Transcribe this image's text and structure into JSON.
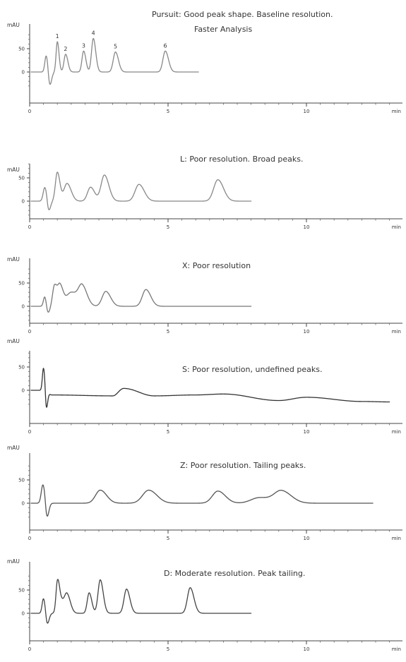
{
  "chart_data": [
    {
      "type": "line",
      "title": "Pursuit: Good peak shape. Baseline resolution.",
      "subtitle": "Faster Analysis",
      "ylabel": "mAU",
      "xlabel": "min",
      "xlim": [
        0,
        13
      ],
      "ylim": [
        -30,
        85
      ],
      "x_ticks": [
        0,
        5,
        10
      ],
      "y_ticks": [
        0,
        50
      ],
      "trace_color": "#888888",
      "peaks": [
        {
          "t": 0.6,
          "h": 36,
          "w": 0.05
        },
        {
          "t": 0.72,
          "h": -32,
          "w": 0.05
        },
        {
          "t": 1.0,
          "h": 65,
          "w": 0.045
        },
        {
          "t": 1.3,
          "h": 38,
          "w": 0.06
        },
        {
          "t": 1.95,
          "h": 45,
          "w": 0.06
        },
        {
          "t": 2.3,
          "h": 72,
          "w": 0.065
        },
        {
          "t": 3.1,
          "h": 43,
          "w": 0.08
        },
        {
          "t": 4.9,
          "h": 45,
          "w": 0.085
        }
      ],
      "peak_labels": [
        {
          "label": "1",
          "t": 1.0,
          "h": 65
        },
        {
          "label": "2",
          "t": 1.3,
          "h": 38
        },
        {
          "label": "3",
          "t": 1.95,
          "h": 45
        },
        {
          "label": "4",
          "t": 2.3,
          "h": 72
        },
        {
          "label": "5",
          "t": 3.1,
          "h": 43
        },
        {
          "label": "6",
          "t": 4.9,
          "h": 45
        }
      ],
      "trace_end": 6.1
    },
    {
      "type": "line",
      "title": "L: Poor resolution. Broad peaks.",
      "ylabel": "mAU",
      "xlabel": "min",
      "xlim": [
        0,
        13
      ],
      "ylim": [
        -30,
        85
      ],
      "x_ticks": [
        0,
        5,
        10
      ],
      "y_ticks": [
        0,
        50
      ],
      "trace_color": "#888888",
      "peaks": [
        {
          "t": 0.55,
          "h": 30,
          "w": 0.06
        },
        {
          "t": 0.68,
          "h": -25,
          "w": 0.05
        },
        {
          "t": 1.0,
          "h": 62,
          "w": 0.07
        },
        {
          "t": 1.35,
          "h": 38,
          "w": 0.11
        },
        {
          "t": 2.2,
          "h": 30,
          "w": 0.11
        },
        {
          "t": 2.7,
          "h": 56,
          "w": 0.12
        },
        {
          "t": 3.95,
          "h": 36,
          "w": 0.14
        },
        {
          "t": 6.8,
          "h": 46,
          "w": 0.15
        }
      ],
      "peak_labels": [],
      "trace_end": 8.0
    },
    {
      "type": "line",
      "title": "X: Poor resolution",
      "ylabel": "mAU",
      "xlabel": "min",
      "xlim": [
        0,
        13
      ],
      "ylim": [
        -30,
        85
      ],
      "x_ticks": [
        0,
        5,
        10
      ],
      "y_ticks": [
        0,
        50
      ],
      "trace_color": "#777777",
      "peaks": [
        {
          "t": 0.55,
          "h": 22,
          "w": 0.05
        },
        {
          "t": 0.65,
          "h": -18,
          "w": 0.05
        },
        {
          "t": 0.9,
          "h": 45,
          "w": 0.07
        },
        {
          "t": 1.1,
          "h": 42,
          "w": 0.08
        },
        {
          "t": 1.5,
          "h": 30,
          "w": 0.18
        },
        {
          "t": 1.9,
          "h": 40,
          "w": 0.13
        },
        {
          "t": 2.75,
          "h": 32,
          "w": 0.13
        },
        {
          "t": 4.2,
          "h": 36,
          "w": 0.13
        }
      ],
      "peak_labels": [],
      "trace_end": 8.0
    },
    {
      "type": "line",
      "title": "S: Poor resolution, undefined peaks.",
      "ylabel": "mAU",
      "xlabel": "min",
      "xlim": [
        0,
        13
      ],
      "ylim": [
        -30,
        85
      ],
      "x_ticks": [
        0,
        5,
        10
      ],
      "y_ticks": [
        0,
        50
      ],
      "trace_color": "#333333",
      "baseline": [
        {
          "t": 0.55,
          "y": 0
        },
        {
          "t": 0.8,
          "y": -10
        },
        {
          "t": 3.0,
          "y": -12
        },
        {
          "t": 3.4,
          "y": 4
        },
        {
          "t": 4.5,
          "y": -12
        },
        {
          "t": 6.0,
          "y": -10
        },
        {
          "t": 7.0,
          "y": -8
        },
        {
          "t": 9.0,
          "y": -22
        },
        {
          "t": 10.0,
          "y": -15
        },
        {
          "t": 12.0,
          "y": -24
        },
        {
          "t": 13.0,
          "y": -25
        }
      ],
      "peaks": [
        {
          "t": 0.5,
          "h": 48,
          "w": 0.04
        },
        {
          "t": 0.6,
          "h": -42,
          "w": 0.035
        }
      ],
      "peak_labels": [],
      "trace_end": 13.0
    },
    {
      "type": "line",
      "title": "Z: Poor resolution. Tailing peaks.",
      "ylabel": "mAU",
      "xlabel": "min",
      "xlim": [
        0,
        13
      ],
      "ylim": [
        -30,
        85
      ],
      "x_ticks": [
        0,
        5,
        10
      ],
      "y_ticks": [
        0,
        50
      ],
      "trace_color": "#555555",
      "peaks": [
        {
          "t": 0.48,
          "h": 40,
          "w": 0.06
        },
        {
          "t": 0.62,
          "h": -35,
          "w": 0.05
        },
        {
          "t": 2.55,
          "h": 28,
          "w": 0.17
        },
        {
          "t": 4.3,
          "h": 28,
          "w": 0.22
        },
        {
          "t": 6.8,
          "h": 26,
          "w": 0.2
        },
        {
          "t": 8.3,
          "h": 12,
          "w": 0.3
        },
        {
          "t": 9.1,
          "h": 26,
          "w": 0.26
        }
      ],
      "peak_labels": [],
      "trace_end": 12.4
    },
    {
      "type": "line",
      "title": "D: Moderate resolution. Peak tailing.",
      "ylabel": "mAU",
      "xlabel": "min",
      "xlim": [
        0,
        13
      ],
      "ylim": [
        -30,
        85
      ],
      "x_ticks": [
        0,
        5,
        10
      ],
      "y_ticks": [
        0,
        50
      ],
      "trace_color": "#444444",
      "peaks": [
        {
          "t": 0.5,
          "h": 32,
          "w": 0.05
        },
        {
          "t": 0.63,
          "h": -25,
          "w": 0.05
        },
        {
          "t": 1.0,
          "h": 55,
          "w": 0.05
        },
        {
          "t": 1.1,
          "h": 30,
          "w": 0.09
        },
        {
          "t": 1.35,
          "h": 40,
          "w": 0.09
        },
        {
          "t": 2.15,
          "h": 44,
          "w": 0.07
        },
        {
          "t": 2.55,
          "h": 72,
          "w": 0.08
        },
        {
          "t": 3.5,
          "h": 52,
          "w": 0.09
        },
        {
          "t": 5.8,
          "h": 55,
          "w": 0.1
        }
      ],
      "peak_labels": [],
      "trace_end": 8.0
    }
  ]
}
